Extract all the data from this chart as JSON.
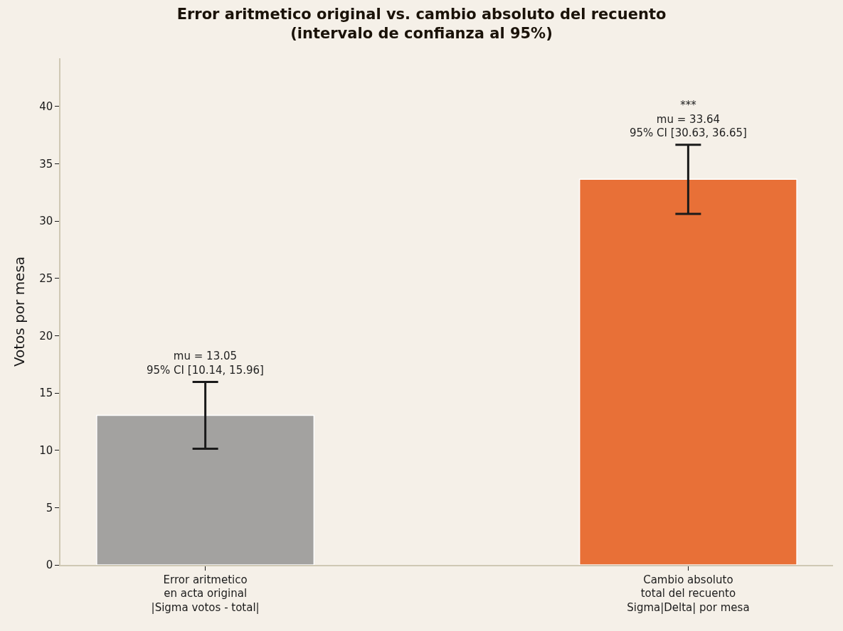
{
  "chart_data": {
    "type": "bar",
    "title": "Error aritmetico original vs. cambio absoluto del recuento\n(intervalo de confianza al 95%)",
    "ylabel": "Votos por mesa",
    "categories": [
      "Error aritmetico\nen acta original\n|Sigma votos - total|",
      "Cambio absoluto\ntotal del recuento\nSigma|Delta| por mesa"
    ],
    "values": [
      13.05,
      33.64
    ],
    "colors": [
      "#a3a2a0",
      "#e87037"
    ],
    "errors": [
      [
        10.14,
        15.96
      ],
      [
        30.63,
        36.65
      ]
    ],
    "annotations": [
      {
        "text": "mu = 13.05\n95% CI [10.14, 15.96]",
        "x": "Error aritmetico\nen acta original\n|Sigma votos - total|",
        "y": 15.96
      },
      {
        "text": "***\nmu = 33.64\n95% CI [30.63, 36.65]",
        "x": "Cambio absoluto\ntotal del recuento\nSigma|Delta| por mesa",
        "y": 36.65
      }
    ],
    "ylim": [
      0,
      44.2
    ],
    "yticks": [
      0,
      5,
      10,
      15,
      20,
      25,
      30,
      35,
      40
    ],
    "grid": false
  }
}
